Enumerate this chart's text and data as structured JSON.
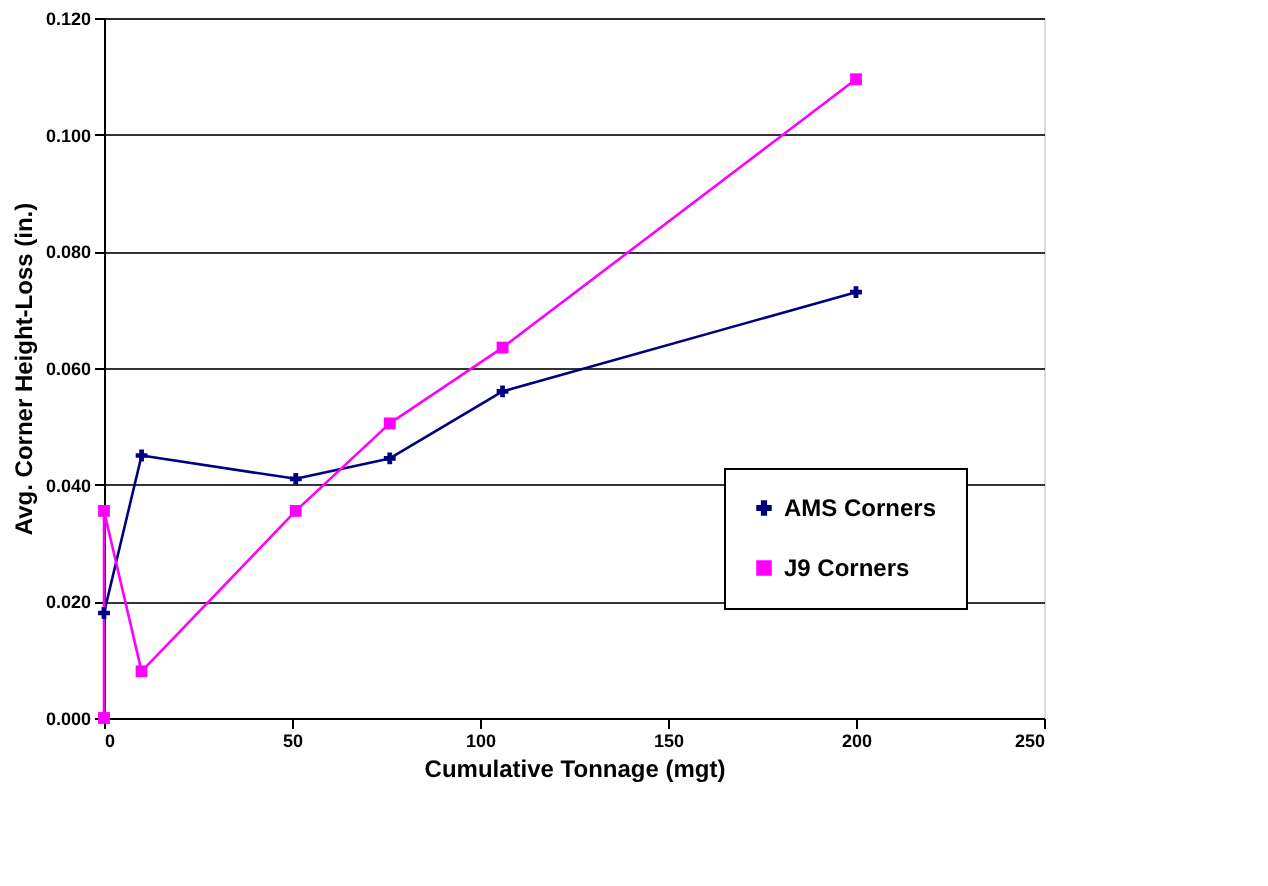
{
  "chart_data": {
    "type": "line",
    "xlabel": "Cumulative Tonnage (mgt)",
    "ylabel": "Avg. Corner Height-Loss (in.)",
    "xlim": [
      0,
      250
    ],
    "xticks": [
      0,
      50,
      100,
      150,
      200,
      250
    ],
    "ylim": [
      0,
      0.12
    ],
    "yticks": [
      {
        "value": 0,
        "label": "0.000"
      },
      {
        "value": 0.02,
        "label": "0.020"
      },
      {
        "value": 0.04,
        "label": "0.040"
      },
      {
        "value": 0.06,
        "label": "0.060"
      },
      {
        "value": 0.08,
        "label": "0.080"
      },
      {
        "value": 0.1,
        "label": "0.100"
      },
      {
        "value": 0.12,
        "label": "0.120"
      }
    ],
    "grid": "y",
    "legend": "right",
    "line_style": "solid",
    "series": [
      {
        "name": "AMS Corners",
        "color": "#000080",
        "marker": "cross",
        "x": [
          0,
          10,
          51,
          76,
          106,
          200
        ],
        "values": [
          0.018,
          0.045,
          0.041,
          0.0445,
          0.056,
          0.073
        ]
      },
      {
        "name": "J9 Corners",
        "color": "#ff00ff",
        "marker": "square",
        "x": [
          0,
          0,
          10,
          51,
          76,
          106,
          200
        ],
        "values": [
          0,
          0.0355,
          0.008,
          0.0355,
          0.0505,
          0.0635,
          0.1095
        ]
      }
    ]
  }
}
